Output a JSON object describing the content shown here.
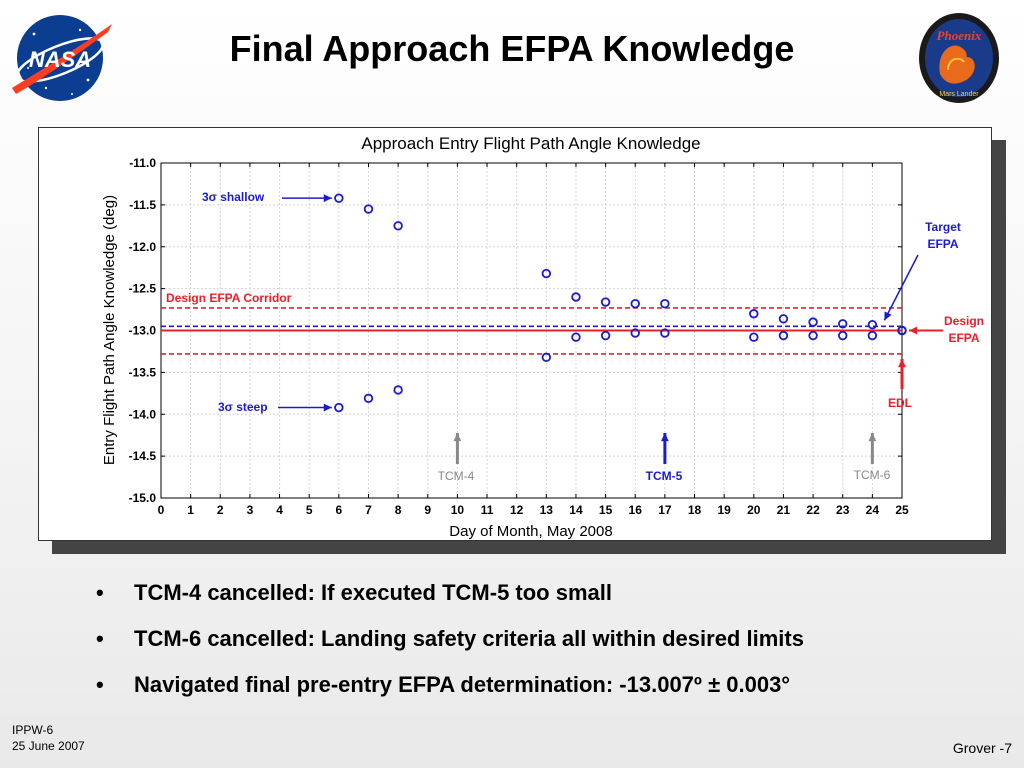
{
  "slide": {
    "title": "Final Approach EFPA Knowledge"
  },
  "logos": {
    "left": {
      "text": "NASA",
      "icon": "nasa-meatball-logo"
    },
    "right": {
      "text": [
        "Phoenix",
        "Mars Lander"
      ],
      "icon": "phoenix-mission-patch"
    }
  },
  "bullets": [
    "TCM-4 cancelled: If executed TCM-5 too small",
    "TCM-6 cancelled: Landing safety criteria all within desired limits",
    "Navigated final pre-entry EFPA determination:  -13.007º ± 0.003°"
  ],
  "footer": {
    "line1": "IPPW-6",
    "line2": "25 June 2007",
    "right": "Grover -7"
  },
  "chart_data": {
    "type": "scatter",
    "title": "Approach Entry Flight Path Angle Knowledge",
    "xlabel": "Day of Month, May 2008",
    "ylabel": "Entry Flight Path Angle Knowledge (deg)",
    "xlim": [
      0,
      25
    ],
    "ylim": [
      -15.0,
      -11.0
    ],
    "x_ticks": [
      0,
      1,
      2,
      3,
      4,
      5,
      6,
      7,
      8,
      9,
      10,
      11,
      12,
      13,
      14,
      15,
      16,
      17,
      18,
      19,
      20,
      21,
      22,
      23,
      24,
      25
    ],
    "y_ticks": [
      -11.0,
      -11.5,
      -12.0,
      -12.5,
      -13.0,
      -13.5,
      -14.0,
      -14.5,
      -15.0
    ],
    "y_tick_labels": [
      "-11.0",
      "-11.5",
      "-12.0",
      "-12.5",
      "-13.0",
      "-13.5",
      "-14.0",
      "-14.5",
      "-15.0"
    ],
    "grid": true,
    "series": [
      {
        "name": "3σ shallow",
        "points": [
          [
            6,
            -11.42
          ],
          [
            7,
            -11.55
          ],
          [
            8,
            -11.75
          ],
          [
            13,
            -12.32
          ],
          [
            14,
            -12.6
          ],
          [
            15,
            -12.66
          ],
          [
            16,
            -12.68
          ],
          [
            17,
            -12.68
          ],
          [
            20,
            -12.8
          ],
          [
            21,
            -12.86
          ],
          [
            22,
            -12.9
          ],
          [
            23,
            -12.92
          ],
          [
            24,
            -12.93
          ],
          [
            25,
            -13.0
          ]
        ]
      },
      {
        "name": "3σ steep",
        "points": [
          [
            6,
            -13.92
          ],
          [
            7,
            -13.81
          ],
          [
            8,
            -13.71
          ],
          [
            13,
            -13.32
          ],
          [
            14,
            -13.08
          ],
          [
            15,
            -13.06
          ],
          [
            16,
            -13.03
          ],
          [
            17,
            -13.03
          ],
          [
            20,
            -13.08
          ],
          [
            21,
            -13.06
          ],
          [
            22,
            -13.06
          ],
          [
            23,
            -13.06
          ],
          [
            24,
            -13.06
          ],
          [
            25,
            -13.0
          ]
        ]
      }
    ],
    "reference_lines": [
      {
        "name": "Design EFPA Corridor",
        "y": [
          -12.73,
          -13.28
        ],
        "color": "#e8202a",
        "style": "dashed"
      },
      {
        "name": "Target EFPA",
        "y": -12.95,
        "color": "#1c1ccc",
        "style": "dashed"
      },
      {
        "name": "Design EFPA",
        "y": -13.0,
        "color": "#e8202a",
        "style": "solid"
      }
    ],
    "annotations": [
      {
        "text": "3σ shallow",
        "x": 6,
        "y": -11.42,
        "color": "#1c1ccc"
      },
      {
        "text": "3σ steep",
        "x": 6,
        "y": -13.92,
        "color": "#1c1ccc"
      },
      {
        "text": "Design EFPA Corridor",
        "color": "#e8202a"
      },
      {
        "text": [
          "Target",
          "EFPA"
        ],
        "color": "#1c1ccc"
      },
      {
        "text": [
          "Design",
          "EFPA"
        ],
        "color": "#e8202a"
      },
      {
        "text": "EDL",
        "x": 25,
        "color": "#e8202a"
      },
      {
        "text": "TCM-4",
        "x": 10,
        "color": "#888888"
      },
      {
        "text": "TCM-5",
        "x": 17,
        "color": "#1c1ccc"
      },
      {
        "text": "TCM-6",
        "x": 24,
        "color": "#888888"
      }
    ],
    "colors": {
      "points": "#1c1ccc",
      "red": "#e8202a",
      "blue": "#1c1ccc",
      "gray": "#888888"
    }
  }
}
